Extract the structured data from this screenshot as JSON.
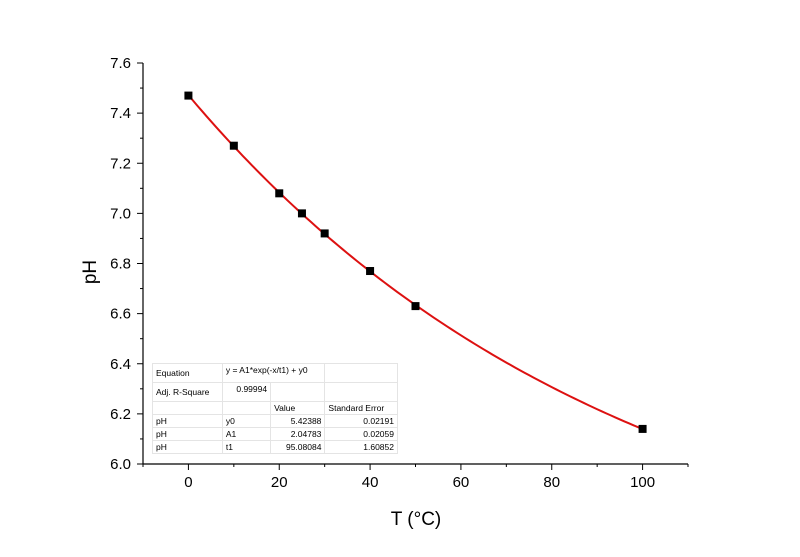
{
  "chart_data": {
    "type": "scatter",
    "xlabel": "T (°C)",
    "ylabel": "pH",
    "xlim": [
      -10,
      110
    ],
    "ylim": [
      6.0,
      7.6
    ],
    "xticks": [
      "0",
      "20",
      "40",
      "60",
      "80",
      "100"
    ],
    "yticks": [
      "6.0",
      "6.2",
      "6.4",
      "6.6",
      "6.8",
      "7.0",
      "7.2",
      "7.4",
      "7.6"
    ],
    "grid": false,
    "points": {
      "x": [
        0,
        10,
        20,
        25,
        30,
        40,
        50,
        100
      ],
      "y": [
        7.47,
        7.27,
        7.08,
        7.0,
        6.92,
        6.77,
        6.63,
        6.14
      ]
    },
    "fit": {
      "model": "exponential",
      "y0": 5.42388,
      "A1": 2.04783,
      "t1": 95.08084,
      "line_color": "#dd1111"
    },
    "marker_color": "#000000"
  },
  "fit_table": {
    "equation_label": "Equation",
    "equation": "y = A1*exp(-x/t1) + y0",
    "adjr_label": "Adj. R-Square",
    "adjr_value": "0.99994",
    "value_header": "Value",
    "stderr_header": "Standard Error",
    "rows": [
      {
        "dep": "pH",
        "param": "y0",
        "value": "5.42388",
        "stderr": "0.02191"
      },
      {
        "dep": "pH",
        "param": "A1",
        "value": "2.04783",
        "stderr": "0.02059"
      },
      {
        "dep": "pH",
        "param": "t1",
        "value": "95.08084",
        "stderr": "1.60852"
      }
    ]
  }
}
